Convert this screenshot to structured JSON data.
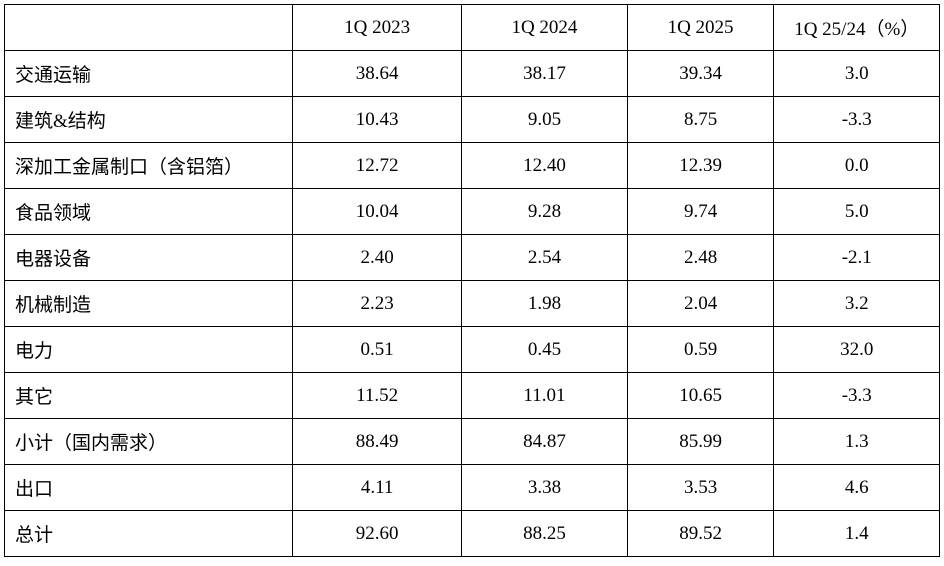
{
  "table": {
    "columns": [
      "",
      "1Q 2023",
      "1Q 2024",
      "1Q 2025",
      "1Q 25/24（%）"
    ],
    "rows": [
      {
        "label": "交通运输",
        "values": [
          "38.64",
          "38.17",
          "39.34",
          "3.0"
        ]
      },
      {
        "label": "建筑&结构",
        "values": [
          "10.43",
          "9.05",
          "8.75",
          "-3.3"
        ]
      },
      {
        "label": "深加工金属制口（含铝箔）",
        "values": [
          "12.72",
          "12.40",
          "12.39",
          "0.0"
        ]
      },
      {
        "label": "食品领域",
        "values": [
          "10.04",
          "9.28",
          "9.74",
          "5.0"
        ]
      },
      {
        "label": "电器设备",
        "values": [
          "2.40",
          "2.54",
          "2.48",
          "-2.1"
        ]
      },
      {
        "label": "机械制造",
        "values": [
          "2.23",
          "1.98",
          "2.04",
          "3.2"
        ]
      },
      {
        "label": "电力",
        "values": [
          "0.51",
          "0.45",
          "0.59",
          "32.0"
        ]
      },
      {
        "label": "其它",
        "values": [
          "11.52",
          "11.01",
          "10.65",
          "-3.3"
        ]
      },
      {
        "label": "小计（国内需求）",
        "values": [
          "88.49",
          "84.87",
          "85.99",
          "1.3"
        ]
      },
      {
        "label": "出口",
        "values": [
          "4.11",
          "3.38",
          "3.53",
          "4.6"
        ]
      },
      {
        "label": "总计",
        "values": [
          "92.60",
          "88.25",
          "89.52",
          "1.4"
        ]
      }
    ],
    "colors": {
      "border": "#000000",
      "background": "#ffffff",
      "text": "#000000"
    }
  }
}
